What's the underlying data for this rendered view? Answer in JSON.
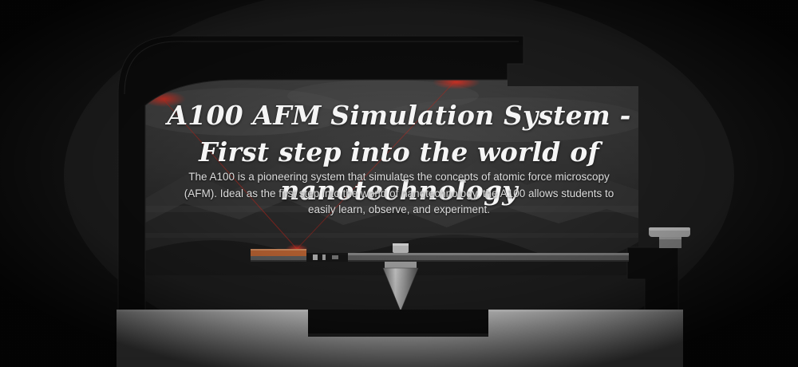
{
  "banner": {
    "title_line1": "A100 AFM Simulation System -",
    "title_line2": "First step into the world of nanotechnology",
    "description": "The A100 is a pioneering system that simulates the concepts of atomic force microscopy (AFM). Ideal as the first step into the world of nanotechnology, the A100 allows students to easily learn, observe, and experiment."
  },
  "colors": {
    "laser": "#e0281c",
    "frame": "#111111",
    "base": "#e8e8e8",
    "sample": "#d9743c"
  },
  "icons": {
    "laser_beam": "laser-beam",
    "probe_tip": "probe-tip",
    "thumb_screw": "thumb-screw"
  }
}
